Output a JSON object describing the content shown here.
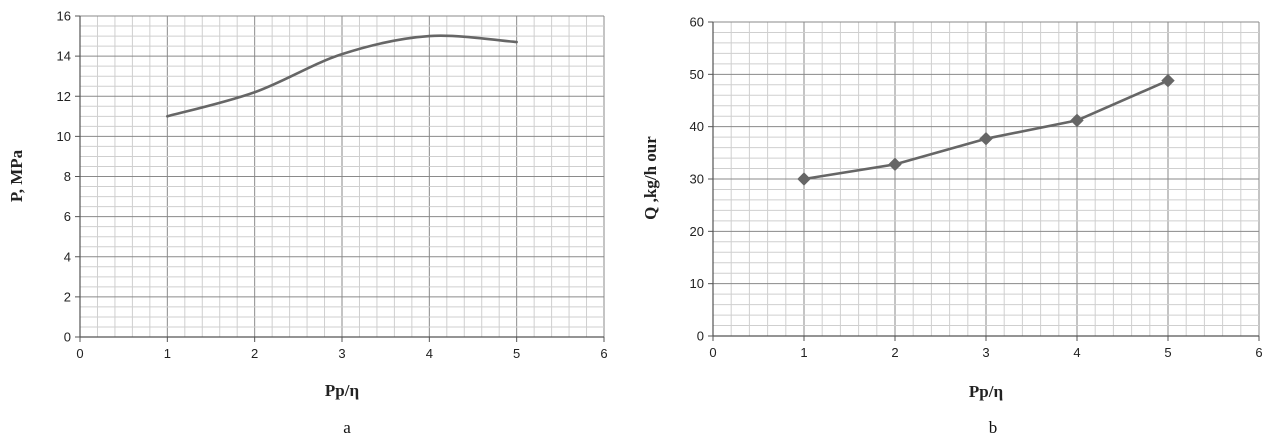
{
  "chart_data": [
    {
      "type": "line",
      "panel_label": "a",
      "xlabel": "Pp/η",
      "ylabel": "P, MPa",
      "xlim": [
        0,
        6
      ],
      "ylim": [
        0,
        16
      ],
      "x_ticks": [
        "0",
        "1",
        "2",
        "3",
        "4",
        "5",
        "6"
      ],
      "y_ticks": [
        "0",
        "2",
        "4",
        "6",
        "8",
        "10",
        "12",
        "14",
        "16"
      ],
      "grid": true,
      "smooth": true,
      "markers": false,
      "line_color": "#666666",
      "series": [
        {
          "x": [
            1,
            2,
            3,
            4,
            5
          ],
          "y": [
            11.0,
            12.2,
            14.1,
            15.0,
            14.7
          ]
        }
      ]
    },
    {
      "type": "line",
      "panel_label": "b",
      "xlabel": "Pp/η",
      "ylabel": "Q ,kg/h our",
      "xlim": [
        0,
        6
      ],
      "ylim": [
        0,
        60
      ],
      "x_ticks": [
        "0",
        "1",
        "2",
        "3",
        "4",
        "5",
        "6"
      ],
      "y_ticks": [
        "0",
        "10",
        "20",
        "30",
        "40",
        "50",
        "60"
      ],
      "grid": true,
      "smooth": false,
      "markers": true,
      "marker": "diamond",
      "line_color": "#666666",
      "series": [
        {
          "x": [
            1,
            2,
            3,
            4,
            5
          ],
          "y": [
            30,
            32.8,
            37.7,
            41.2,
            48.8
          ]
        }
      ]
    }
  ]
}
